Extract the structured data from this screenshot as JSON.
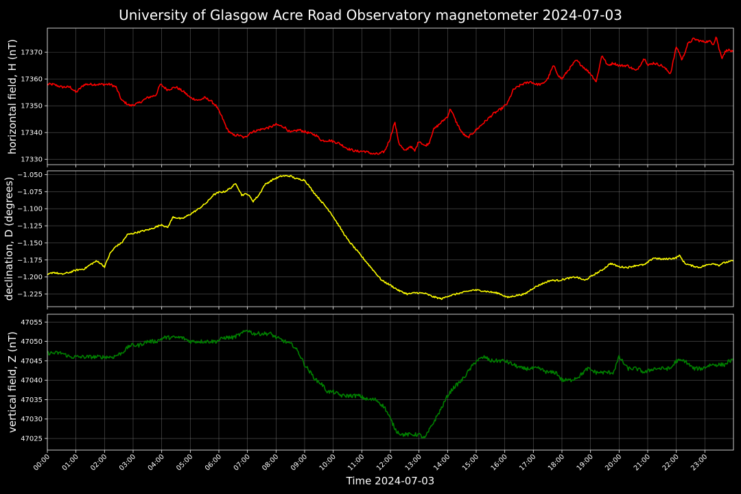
{
  "figure": {
    "title": "University of Glasgow Acre Road Observatory magnetometer 2024-07-03",
    "xlabel": "Time 2024-07-03",
    "background": "#000000",
    "foreground": "#ffffff",
    "grid_color": "#808080"
  },
  "chart_data": [
    {
      "type": "line",
      "title": "",
      "xlabel": "",
      "ylabel": "horizontal field, H (nT)",
      "xlim_hours": [
        0,
        24
      ],
      "ylim": [
        17328,
        17379
      ],
      "yticks": [
        17330,
        17340,
        17350,
        17360,
        17370
      ],
      "ytick_labels": [
        "17330",
        "17340",
        "17350",
        "17360",
        "17370"
      ],
      "grid": true,
      "noise": 0.45,
      "series": [
        {
          "color": "#ff0000",
          "x_hours": [
            0.0,
            0.2,
            0.5,
            0.8,
            1.0,
            1.3,
            1.6,
            1.9,
            2.2,
            2.4,
            2.6,
            2.9,
            3.2,
            3.5,
            3.8,
            3.95,
            4.2,
            4.5,
            4.8,
            5.0,
            5.3,
            5.5,
            5.7,
            5.9,
            6.1,
            6.3,
            6.5,
            6.7,
            6.9,
            7.1,
            7.4,
            7.8,
            8.0,
            8.3,
            8.5,
            8.8,
            9.1,
            9.4,
            9.6,
            9.9,
            10.2,
            10.5,
            10.8,
            11.1,
            11.4,
            11.6,
            11.8,
            12.0,
            12.05,
            12.15,
            12.3,
            12.5,
            12.7,
            12.85,
            13.0,
            13.2,
            13.35,
            13.5,
            13.8,
            14.0,
            14.1,
            14.3,
            14.5,
            14.7,
            14.9,
            15.1,
            15.3,
            15.6,
            15.9,
            16.1,
            16.3,
            16.6,
            16.9,
            17.1,
            17.3,
            17.5,
            17.7,
            17.9,
            18.0,
            18.2,
            18.5,
            18.8,
            19.0,
            19.2,
            19.4,
            19.6,
            19.8,
            20.0,
            20.3,
            20.6,
            20.9,
            21.0,
            21.2,
            21.5,
            21.8,
            22.0,
            22.1,
            22.2,
            22.4,
            22.6,
            22.9,
            23.2,
            23.3,
            23.4,
            23.5,
            23.6,
            23.7,
            23.8,
            24.0
          ],
          "values": [
            17358,
            17358,
            17357,
            17357,
            17355,
            17358,
            17358,
            17358,
            17358,
            17357,
            17352,
            17350,
            17351,
            17353,
            17354,
            17358,
            17356,
            17357,
            17355,
            17353,
            17352,
            17353,
            17352,
            17350,
            17346,
            17341,
            17339,
            17339,
            17338,
            17340,
            17341,
            17342,
            17343,
            17342,
            17340,
            17341,
            17340,
            17339,
            17337,
            17337,
            17336,
            17334,
            17333,
            17333,
            17332,
            17332,
            17333,
            17338,
            17340,
            17344,
            17336,
            17333,
            17335,
            17333,
            17337,
            17335,
            17336,
            17341,
            17344,
            17346,
            17349,
            17344,
            17340,
            17338,
            17340,
            17342,
            17344,
            17347,
            17349,
            17351,
            17356,
            17358,
            17359,
            17358,
            17358,
            17360,
            17365,
            17361,
            17360,
            17363,
            17367,
            17364,
            17362,
            17359,
            17369,
            17365,
            17366,
            17365,
            17365,
            17363,
            17368,
            17365,
            17366,
            17365,
            17362,
            17372,
            17370,
            17367,
            17373,
            17375,
            17374,
            17374,
            17373,
            17376,
            17371,
            17368,
            17370,
            17371,
            17370
          ]
        }
      ]
    },
    {
      "type": "line",
      "title": "",
      "xlabel": "",
      "ylabel": "declination, D (degrees)",
      "xlim_hours": [
        0,
        24
      ],
      "ylim": [
        -1.2435,
        -1.0445
      ],
      "yticks": [
        -1.225,
        -1.2,
        -1.175,
        -1.15,
        -1.125,
        -1.1,
        -1.075,
        -1.05
      ],
      "ytick_labels": [
        "−1.225",
        "−1.200",
        "−1.175",
        "−1.150",
        "−1.125",
        "−1.100",
        "−1.075",
        "−1.050"
      ],
      "grid": true,
      "noise": 0.0012,
      "series": [
        {
          "color": "#ffff00",
          "x_hours": [
            0.0,
            0.2,
            0.5,
            0.8,
            1.0,
            1.3,
            1.5,
            1.7,
            1.8,
            2.0,
            2.2,
            2.4,
            2.6,
            2.8,
            3.0,
            3.3,
            3.6,
            3.9,
            4.0,
            4.2,
            4.4,
            4.7,
            5.0,
            5.3,
            5.6,
            5.8,
            6.0,
            6.2,
            6.4,
            6.6,
            6.8,
            7.0,
            7.2,
            7.4,
            7.6,
            7.9,
            8.2,
            8.5,
            8.7,
            9.0,
            9.3,
            9.6,
            9.9,
            10.2,
            10.5,
            10.8,
            11.1,
            11.4,
            11.7,
            12.0,
            12.3,
            12.6,
            12.9,
            13.2,
            13.5,
            13.8,
            14.0,
            14.3,
            14.6,
            14.9,
            15.2,
            15.5,
            15.8,
            16.1,
            16.4,
            16.7,
            17.0,
            17.3,
            17.6,
            17.9,
            18.2,
            18.5,
            18.8,
            19.1,
            19.4,
            19.7,
            20.0,
            20.3,
            20.6,
            20.9,
            21.2,
            21.5,
            21.8,
            22.0,
            22.1,
            22.3,
            22.5,
            22.8,
            23.1,
            23.3,
            23.5,
            23.6,
            23.8,
            24.0
          ],
          "values": [
            -1.197,
            -1.193,
            -1.196,
            -1.193,
            -1.19,
            -1.188,
            -1.182,
            -1.177,
            -1.178,
            -1.185,
            -1.165,
            -1.155,
            -1.15,
            -1.138,
            -1.136,
            -1.133,
            -1.13,
            -1.125,
            -1.123,
            -1.128,
            -1.112,
            -1.115,
            -1.108,
            -1.1,
            -1.09,
            -1.08,
            -1.076,
            -1.075,
            -1.07,
            -1.063,
            -1.08,
            -1.078,
            -1.089,
            -1.08,
            -1.065,
            -1.057,
            -1.052,
            -1.052,
            -1.056,
            -1.058,
            -1.075,
            -1.09,
            -1.105,
            -1.125,
            -1.145,
            -1.16,
            -1.175,
            -1.19,
            -1.205,
            -1.212,
            -1.22,
            -1.225,
            -1.223,
            -1.224,
            -1.229,
            -1.232,
            -1.228,
            -1.225,
            -1.222,
            -1.219,
            -1.22,
            -1.222,
            -1.224,
            -1.23,
            -1.227,
            -1.225,
            -1.216,
            -1.21,
            -1.205,
            -1.205,
            -1.202,
            -1.2,
            -1.205,
            -1.197,
            -1.19,
            -1.18,
            -1.185,
            -1.186,
            -1.183,
            -1.182,
            -1.172,
            -1.174,
            -1.173,
            -1.172,
            -1.168,
            -1.18,
            -1.183,
            -1.186,
            -1.182,
            -1.18,
            -1.183,
            -1.18,
            -1.178,
            -1.176
          ]
        }
      ]
    },
    {
      "type": "line",
      "title": "",
      "xlabel": "",
      "ylabel": "vertical field, Z (nT)",
      "xlim_hours": [
        0,
        24
      ],
      "ylim": [
        47022,
        47057
      ],
      "yticks": [
        47025,
        47030,
        47035,
        47040,
        47045,
        47050,
        47055
      ],
      "ytick_labels": [
        "47025",
        "47030",
        "47035",
        "47040",
        "47045",
        "47050",
        "47055"
      ],
      "grid": true,
      "noise": 0.5,
      "series": [
        {
          "color": "#008000",
          "x_hours": [
            0.0,
            0.2,
            0.5,
            0.8,
            1.1,
            1.4,
            1.7,
            2.0,
            2.3,
            2.6,
            2.9,
            3.2,
            3.5,
            3.8,
            4.1,
            4.4,
            4.7,
            5.0,
            5.3,
            5.6,
            5.9,
            6.2,
            6.5,
            6.8,
            7.0,
            7.2,
            7.5,
            7.8,
            8.0,
            8.3,
            8.6,
            8.8,
            9.0,
            9.2,
            9.4,
            9.6,
            9.8,
            10.0,
            10.3,
            10.6,
            10.9,
            11.2,
            11.5,
            11.8,
            12.0,
            12.2,
            12.4,
            12.7,
            13.0,
            13.2,
            13.5,
            13.8,
            14.0,
            14.2,
            14.5,
            14.8,
            15.0,
            15.3,
            15.5,
            15.8,
            16.0,
            16.3,
            16.6,
            16.9,
            17.2,
            17.5,
            17.8,
            18.0,
            18.3,
            18.6,
            18.9,
            19.2,
            19.5,
            19.8,
            20.0,
            20.3,
            20.6,
            20.9,
            21.2,
            21.5,
            21.8,
            22.0,
            22.3,
            22.6,
            22.9,
            23.2,
            23.5,
            23.7,
            23.85,
            24.0
          ],
          "values": [
            47047,
            47047,
            47047,
            47046,
            47046,
            47046,
            47046,
            47046,
            47046,
            47047,
            47049,
            47049,
            47050,
            47050,
            47051,
            47051,
            47051,
            47050,
            47050,
            47050,
            47050,
            47051,
            47051,
            47052,
            47053,
            47052,
            47052,
            47052,
            47051,
            47050,
            47049,
            47047,
            47044,
            47042,
            47040,
            47039,
            47037,
            47037,
            47036,
            47036,
            47036,
            47035,
            47035,
            47033,
            47030,
            47027,
            47026,
            47026,
            47026,
            47025,
            47029,
            47033,
            47036,
            47038,
            47040,
            47043,
            47045,
            47046,
            47045,
            47045,
            47045,
            47044,
            47043,
            47043,
            47043,
            47042,
            47042,
            47040,
            47040,
            47041,
            47043,
            47042,
            47042,
            47042,
            47046,
            47043,
            47043,
            47042,
            47043,
            47043,
            47043,
            47045,
            47045,
            47043,
            47043,
            47044,
            47044,
            47044,
            47045,
            47045
          ]
        }
      ]
    }
  ],
  "xaxis": {
    "tick_hours": [
      0,
      1,
      2,
      3,
      4,
      5,
      6,
      7,
      8,
      9,
      10,
      11,
      12,
      13,
      14,
      15,
      16,
      17,
      18,
      19,
      20,
      21,
      22,
      23
    ],
    "tick_labels": [
      "00:00",
      "01:00",
      "02:00",
      "03:00",
      "04:00",
      "05:00",
      "06:00",
      "07:00",
      "08:00",
      "09:00",
      "10:00",
      "11:00",
      "12:00",
      "13:00",
      "14:00",
      "15:00",
      "16:00",
      "17:00",
      "18:00",
      "19:00",
      "20:00",
      "21:00",
      "22:00",
      "23:00"
    ]
  }
}
